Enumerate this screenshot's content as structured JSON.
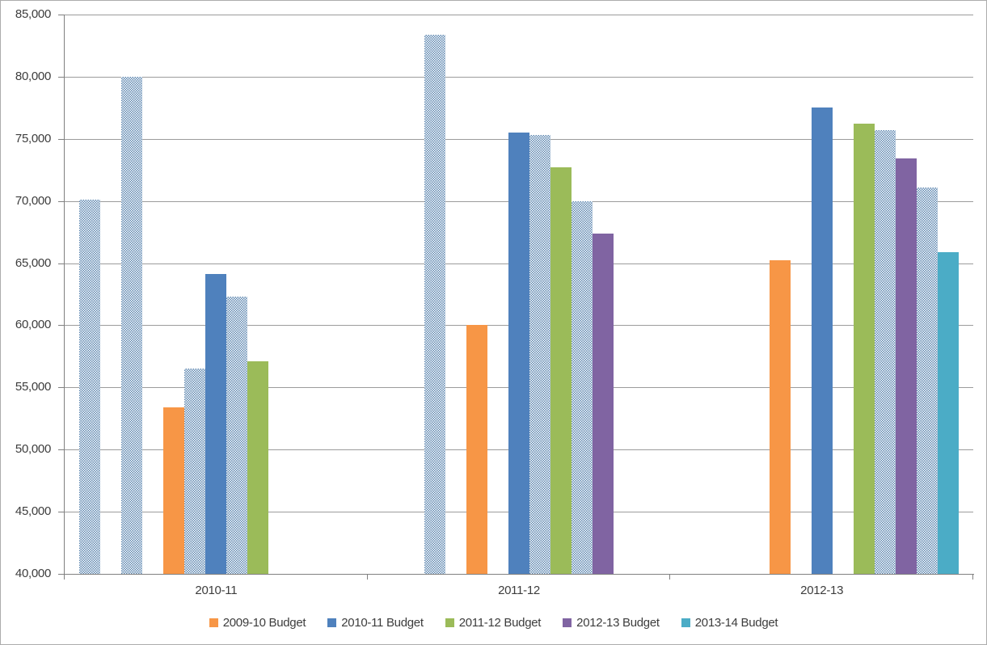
{
  "chart_data": {
    "type": "bar",
    "categories": [
      "2010-11",
      "2011-12",
      "2012-13"
    ],
    "y_axis": {
      "min": 40000,
      "max": 85000,
      "step": 5000,
      "tick_labels": [
        "40,000",
        "45,000",
        "50,000",
        "55,000",
        "60,000",
        "65,000",
        "70,000",
        "75,000",
        "80,000",
        "85,000"
      ]
    },
    "grid": true,
    "legend_position": "bottom",
    "slots_per_category": 13,
    "series": [
      {
        "slot": 0,
        "name": "",
        "style": "pattern",
        "in_legend": false,
        "values": [
          70100,
          null,
          null
        ]
      },
      {
        "slot": 2,
        "name": "",
        "style": "pattern",
        "in_legend": false,
        "values": [
          80000,
          83400,
          null
        ]
      },
      {
        "slot": 4,
        "name": "2009-10 Budget",
        "style": "solid",
        "color": "#F79646",
        "in_legend": true,
        "values": [
          53400,
          60000,
          65200
        ]
      },
      {
        "slot": 5,
        "name": "",
        "style": "pattern",
        "in_legend": false,
        "values": [
          56500,
          null,
          null
        ]
      },
      {
        "slot": 6,
        "name": "2010-11 Budget",
        "style": "solid",
        "color": "#4F81BD",
        "in_legend": true,
        "values": [
          64100,
          75500,
          77500
        ]
      },
      {
        "slot": 7,
        "name": "",
        "style": "pattern",
        "in_legend": false,
        "values": [
          62300,
          75300,
          null
        ]
      },
      {
        "slot": 8,
        "name": "2011-12 Budget",
        "style": "solid",
        "color": "#9BBB59",
        "in_legend": true,
        "values": [
          57100,
          72700,
          76200
        ]
      },
      {
        "slot": 9,
        "name": "",
        "style": "pattern",
        "in_legend": false,
        "values": [
          null,
          70000,
          75700
        ]
      },
      {
        "slot": 10,
        "name": "2012-13 Budget",
        "style": "solid",
        "color": "#8064A2",
        "in_legend": true,
        "values": [
          null,
          67400,
          73400
        ]
      },
      {
        "slot": 11,
        "name": "",
        "style": "pattern",
        "in_legend": false,
        "values": [
          null,
          null,
          71100
        ]
      },
      {
        "slot": 12,
        "name": "2013-14 Budget",
        "style": "solid",
        "color": "#4BACC6",
        "in_legend": true,
        "values": [
          null,
          null,
          65900
        ]
      }
    ],
    "colors": {
      "pattern_foreground": "#5E87B0",
      "pattern_background": "#FFFFFF",
      "gridline": "#9C9C9C",
      "axis": "#808080",
      "text": "#3D3D3D",
      "chart_border": "#ACACAC",
      "background": "#FFFFFF"
    }
  }
}
